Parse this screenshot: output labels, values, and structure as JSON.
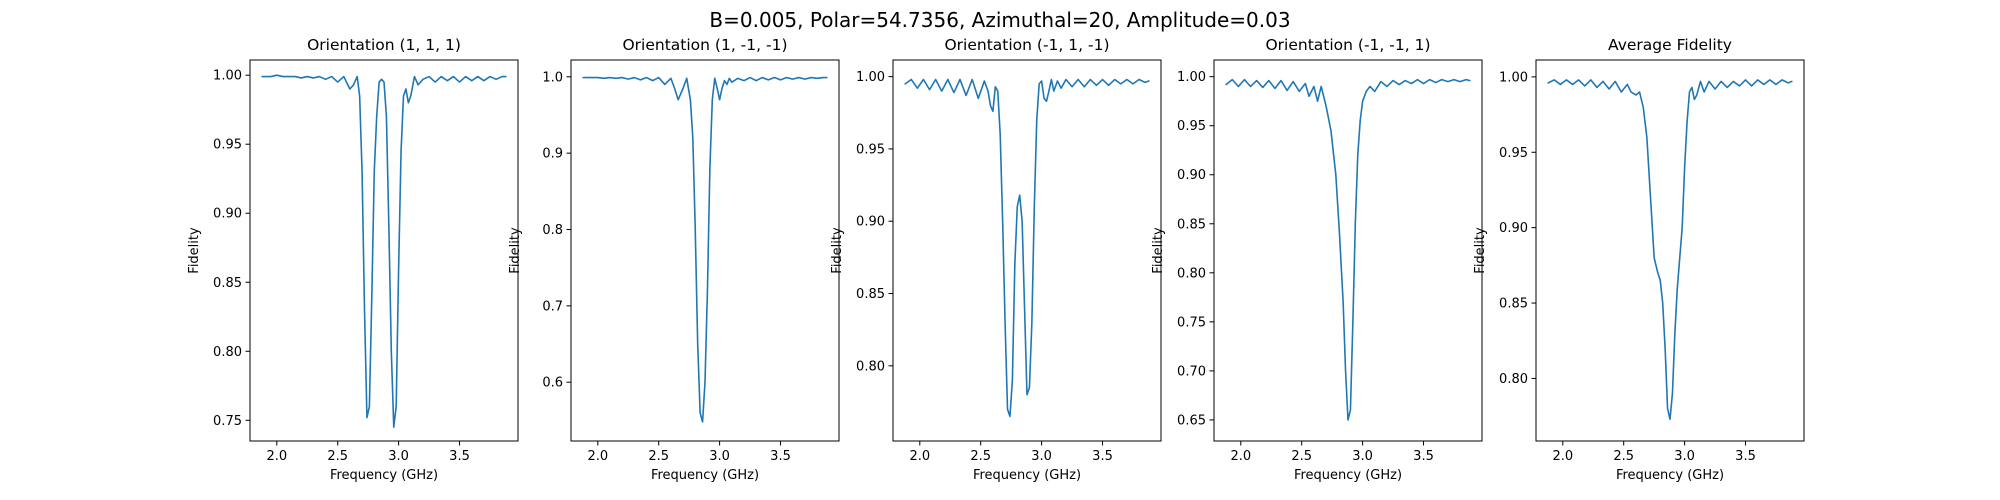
{
  "figure": {
    "suptitle": "B=0.005, Polar=54.7356, Azimuthal=20, Amplitude=0.03",
    "line_color": "#1f77b4"
  },
  "chart_data": [
    {
      "type": "line",
      "title": "Orientation (1, 1, 1)",
      "xlabel": "Frequency (GHz)",
      "ylabel": "Fidelity",
      "xlim": [
        1.78,
        3.98
      ],
      "ylim": [
        0.735,
        1.011
      ],
      "xticks": [
        2.0,
        2.5,
        3.0,
        3.5
      ],
      "xtick_labels": [
        "2.0",
        "2.5",
        "3.0",
        "3.5"
      ],
      "yticks": [
        0.75,
        0.8,
        0.85,
        0.9,
        0.95,
        1.0
      ],
      "ytick_labels": [
        "0.75",
        "0.80",
        "0.85",
        "0.90",
        "0.95",
        "1.00"
      ],
      "series": [
        {
          "x": [
            1.88,
            1.95,
            2.0,
            2.05,
            2.1,
            2.15,
            2.2,
            2.25,
            2.3,
            2.35,
            2.4,
            2.45,
            2.5,
            2.55,
            2.6,
            2.63,
            2.66,
            2.68,
            2.7,
            2.72,
            2.74,
            2.76,
            2.78,
            2.8,
            2.82,
            2.84,
            2.86,
            2.88,
            2.9,
            2.92,
            2.94,
            2.96,
            2.98,
            3.0,
            3.02,
            3.04,
            3.06,
            3.08,
            3.1,
            3.13,
            3.16,
            3.2,
            3.25,
            3.3,
            3.35,
            3.4,
            3.45,
            3.5,
            3.55,
            3.6,
            3.65,
            3.7,
            3.75,
            3.8,
            3.85,
            3.88
          ],
          "y": [
            0.999,
            0.999,
            1.0,
            0.999,
            0.999,
            0.999,
            0.998,
            0.999,
            0.998,
            0.999,
            0.997,
            0.999,
            0.995,
            0.999,
            0.99,
            0.993,
            0.999,
            0.985,
            0.93,
            0.83,
            0.752,
            0.76,
            0.84,
            0.93,
            0.97,
            0.995,
            0.997,
            0.995,
            0.97,
            0.89,
            0.8,
            0.745,
            0.76,
            0.86,
            0.945,
            0.985,
            0.99,
            0.98,
            0.985,
            0.999,
            0.993,
            0.997,
            0.999,
            0.995,
            0.999,
            0.996,
            0.999,
            0.995,
            0.999,
            0.996,
            0.999,
            0.996,
            0.999,
            0.997,
            0.999,
            0.999
          ]
        }
      ]
    },
    {
      "type": "line",
      "title": "Orientation (1, -1, -1)",
      "xlabel": "Frequency (GHz)",
      "ylabel": "Fidelity",
      "xlim": [
        1.78,
        3.98
      ],
      "ylim": [
        0.523,
        1.022
      ],
      "xticks": [
        2.0,
        2.5,
        3.0,
        3.5
      ],
      "xtick_labels": [
        "2.0",
        "2.5",
        "3.0",
        "3.5"
      ],
      "yticks": [
        0.6,
        0.7,
        0.8,
        0.9,
        1.0
      ],
      "ytick_labels": [
        "0.6",
        "0.7",
        "0.8",
        "0.9",
        "1.0"
      ],
      "series": [
        {
          "x": [
            1.88,
            1.95,
            2.0,
            2.05,
            2.1,
            2.15,
            2.2,
            2.25,
            2.3,
            2.35,
            2.4,
            2.45,
            2.5,
            2.55,
            2.6,
            2.63,
            2.66,
            2.7,
            2.73,
            2.76,
            2.78,
            2.8,
            2.82,
            2.84,
            2.86,
            2.88,
            2.9,
            2.92,
            2.94,
            2.96,
            2.98,
            3.0,
            3.02,
            3.04,
            3.06,
            3.08,
            3.1,
            3.15,
            3.2,
            3.25,
            3.3,
            3.35,
            3.4,
            3.45,
            3.5,
            3.55,
            3.6,
            3.65,
            3.7,
            3.75,
            3.8,
            3.85,
            3.88
          ],
          "y": [
            0.999,
            0.999,
            0.999,
            0.998,
            0.999,
            0.998,
            0.999,
            0.997,
            0.999,
            0.996,
            0.999,
            0.995,
            0.999,
            0.99,
            0.998,
            0.985,
            0.97,
            0.985,
            0.998,
            0.97,
            0.92,
            0.8,
            0.65,
            0.56,
            0.548,
            0.6,
            0.72,
            0.88,
            0.97,
            0.998,
            0.985,
            0.97,
            0.985,
            0.995,
            0.99,
            0.998,
            0.993,
            0.998,
            0.995,
            0.999,
            0.995,
            0.999,
            0.996,
            0.999,
            0.996,
            0.999,
            0.997,
            0.999,
            0.997,
            0.999,
            0.998,
            0.999,
            0.999
          ]
        }
      ]
    },
    {
      "type": "line",
      "title": "Orientation (-1, 1, -1)",
      "xlabel": "Frequency (GHz)",
      "ylabel": "Fidelity",
      "xlim": [
        1.78,
        3.98
      ],
      "ylim": [
        0.748,
        1.0115
      ],
      "xticks": [
        2.0,
        2.5,
        3.0,
        3.5
      ],
      "xtick_labels": [
        "2.0",
        "2.5",
        "3.0",
        "3.5"
      ],
      "yticks": [
        0.8,
        0.85,
        0.9,
        0.95,
        1.0
      ],
      "ytick_labels": [
        "0.80",
        "0.85",
        "0.90",
        "0.95",
        "1.00"
      ],
      "series": [
        {
          "x": [
            1.88,
            1.93,
            1.98,
            2.03,
            2.08,
            2.13,
            2.18,
            2.23,
            2.28,
            2.33,
            2.38,
            2.43,
            2.48,
            2.53,
            2.56,
            2.58,
            2.6,
            2.62,
            2.64,
            2.66,
            2.68,
            2.7,
            2.72,
            2.74,
            2.76,
            2.78,
            2.8,
            2.82,
            2.84,
            2.86,
            2.88,
            2.9,
            2.92,
            2.94,
            2.96,
            2.98,
            3.0,
            3.02,
            3.04,
            3.06,
            3.08,
            3.1,
            3.13,
            3.16,
            3.2,
            3.25,
            3.3,
            3.35,
            3.4,
            3.45,
            3.5,
            3.55,
            3.6,
            3.65,
            3.7,
            3.75,
            3.8,
            3.85,
            3.88
          ],
          "y": [
            0.995,
            0.998,
            0.992,
            0.998,
            0.991,
            0.998,
            0.99,
            0.998,
            0.989,
            0.998,
            0.987,
            0.998,
            0.985,
            0.997,
            0.99,
            0.98,
            0.976,
            0.993,
            0.99,
            0.96,
            0.9,
            0.83,
            0.77,
            0.765,
            0.79,
            0.87,
            0.91,
            0.918,
            0.9,
            0.84,
            0.78,
            0.785,
            0.83,
            0.91,
            0.97,
            0.995,
            0.997,
            0.985,
            0.983,
            0.99,
            0.998,
            0.99,
            0.997,
            0.992,
            0.998,
            0.993,
            0.998,
            0.993,
            0.998,
            0.994,
            0.998,
            0.994,
            0.998,
            0.995,
            0.998,
            0.995,
            0.998,
            0.996,
            0.997
          ]
        }
      ]
    },
    {
      "type": "line",
      "title": "Orientation (-1, -1, 1)",
      "xlabel": "Frequency (GHz)",
      "ylabel": "Fidelity",
      "xlim": [
        1.78,
        3.98
      ],
      "ylim": [
        0.6285,
        1.017
      ],
      "xticks": [
        2.0,
        2.5,
        3.0,
        3.5
      ],
      "xtick_labels": [
        "2.0",
        "2.5",
        "3.0",
        "3.5"
      ],
      "yticks": [
        0.65,
        0.7,
        0.75,
        0.8,
        0.85,
        0.9,
        0.95,
        1.0
      ],
      "ytick_labels": [
        "0.65",
        "0.70",
        "0.75",
        "0.80",
        "0.85",
        "0.90",
        "0.95",
        "1.00"
      ],
      "series": [
        {
          "x": [
            1.88,
            1.93,
            1.98,
            2.03,
            2.08,
            2.13,
            2.18,
            2.23,
            2.28,
            2.33,
            2.38,
            2.43,
            2.48,
            2.53,
            2.56,
            2.6,
            2.63,
            2.66,
            2.7,
            2.74,
            2.78,
            2.81,
            2.84,
            2.86,
            2.88,
            2.9,
            2.92,
            2.94,
            2.96,
            2.98,
            3.0,
            3.03,
            3.06,
            3.1,
            3.15,
            3.2,
            3.25,
            3.3,
            3.35,
            3.4,
            3.45,
            3.5,
            3.55,
            3.6,
            3.65,
            3.7,
            3.75,
            3.8,
            3.85,
            3.88
          ],
          "y": [
            0.992,
            0.997,
            0.99,
            0.997,
            0.99,
            0.996,
            0.989,
            0.996,
            0.988,
            0.996,
            0.986,
            0.995,
            0.985,
            0.993,
            0.98,
            0.99,
            0.975,
            0.99,
            0.97,
            0.945,
            0.9,
            0.84,
            0.77,
            0.7,
            0.65,
            0.66,
            0.75,
            0.85,
            0.92,
            0.955,
            0.975,
            0.985,
            0.99,
            0.985,
            0.995,
            0.99,
            0.996,
            0.992,
            0.996,
            0.993,
            0.997,
            0.993,
            0.997,
            0.994,
            0.997,
            0.995,
            0.997,
            0.995,
            0.997,
            0.996
          ]
        }
      ]
    },
    {
      "type": "line",
      "title": "Average Fidelity",
      "xlabel": "Frequency (GHz)",
      "ylabel": "Fidelity",
      "xlim": [
        1.78,
        3.98
      ],
      "ylim": [
        0.7585,
        1.0112
      ],
      "xticks": [
        2.0,
        2.5,
        3.0,
        3.5
      ],
      "xtick_labels": [
        "2.0",
        "2.5",
        "3.0",
        "3.5"
      ],
      "yticks": [
        0.8,
        0.85,
        0.9,
        0.95,
        1.0
      ],
      "ytick_labels": [
        "0.80",
        "0.85",
        "0.90",
        "0.95",
        "1.00"
      ],
      "series": [
        {
          "x": [
            1.88,
            1.93,
            1.98,
            2.03,
            2.08,
            2.13,
            2.18,
            2.23,
            2.28,
            2.33,
            2.38,
            2.43,
            2.48,
            2.53,
            2.56,
            2.6,
            2.63,
            2.66,
            2.69,
            2.72,
            2.75,
            2.78,
            2.8,
            2.82,
            2.84,
            2.86,
            2.88,
            2.9,
            2.92,
            2.94,
            2.96,
            2.98,
            3.0,
            3.02,
            3.04,
            3.06,
            3.08,
            3.1,
            3.13,
            3.16,
            3.2,
            3.25,
            3.3,
            3.35,
            3.4,
            3.45,
            3.5,
            3.55,
            3.6,
            3.65,
            3.7,
            3.75,
            3.8,
            3.85,
            3.88
          ],
          "y": [
            0.996,
            0.998,
            0.995,
            0.998,
            0.995,
            0.998,
            0.994,
            0.998,
            0.993,
            0.997,
            0.992,
            0.997,
            0.99,
            0.995,
            0.99,
            0.988,
            0.99,
            0.98,
            0.96,
            0.92,
            0.88,
            0.87,
            0.865,
            0.85,
            0.82,
            0.78,
            0.773,
            0.79,
            0.83,
            0.86,
            0.88,
            0.9,
            0.94,
            0.97,
            0.99,
            0.993,
            0.985,
            0.988,
            0.997,
            0.99,
            0.997,
            0.992,
            0.997,
            0.993,
            0.997,
            0.994,
            0.998,
            0.994,
            0.998,
            0.995,
            0.998,
            0.995,
            0.998,
            0.996,
            0.997
          ]
        }
      ]
    }
  ]
}
